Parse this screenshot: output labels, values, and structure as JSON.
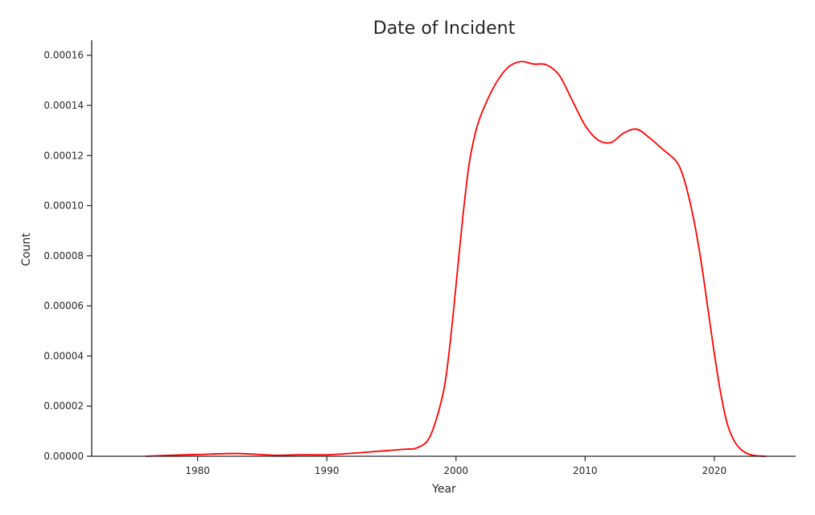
{
  "chart_data": {
    "type": "line",
    "title": "Date of Incident",
    "xlabel": "Year",
    "ylabel": "Count",
    "xlim": [
      1971.8,
      2026.3
    ],
    "ylim": [
      0,
      0.000166
    ],
    "grid": false,
    "legend": "none",
    "line_color": "#ff0000",
    "xticks": [
      1980,
      1990,
      2000,
      2010,
      2020
    ],
    "xtick_labels": [
      "1980",
      "1990",
      "2000",
      "2010",
      "2020"
    ],
    "yticks": [
      0,
      2e-05,
      4e-05,
      6e-05,
      8e-05,
      0.0001,
      0.00012,
      0.00014,
      0.00016
    ],
    "ytick_labels": [
      "0.00000",
      "0.00002",
      "0.00004",
      "0.00006",
      "0.00008",
      "0.00010",
      "0.00012",
      "0.00014",
      "0.00016"
    ],
    "series": [
      {
        "name": "Date of Incident",
        "x": [
          1976,
          1978,
          1980,
          1983,
          1986,
          1988,
          1990,
          1992,
          1994,
          1996,
          1997,
          1998,
          1999,
          1999.5,
          2000,
          2000.5,
          2001,
          2001.5,
          2002,
          2003,
          2004,
          2005,
          2006,
          2007,
          2008,
          2009,
          2010,
          2011,
          2012,
          2013,
          2014,
          2015,
          2016,
          2017,
          2017.5,
          2018,
          2018.5,
          2019,
          2019.5,
          2020,
          2020.5,
          2021,
          2021.5,
          2022,
          2022.5,
          2023,
          2023.5,
          2024
        ],
        "y": [
          0,
          4e-07,
          7e-07,
          1.1e-06,
          4e-07,
          6e-07,
          6e-07,
          1.2e-06,
          2e-06,
          2.8e-06,
          3.4e-06,
          8e-06,
          2.5e-05,
          4.3e-05,
          6.8e-05,
          9.4e-05,
          0.000116,
          0.000129,
          0.000137,
          0.000148,
          0.000155,
          0.0001575,
          0.0001565,
          0.0001562,
          0.000152,
          0.000142,
          0.000132,
          0.0001262,
          0.0001252,
          0.000129,
          0.0001305,
          0.000127,
          0.0001225,
          0.000118,
          0.000113,
          0.000104,
          9.2e-05,
          7.7e-05,
          5.9e-05,
          4.1e-05,
          2.5e-05,
          1.3e-05,
          6.5e-06,
          3e-06,
          1.2e-06,
          4e-07,
          1e-07,
          0
        ]
      }
    ]
  }
}
